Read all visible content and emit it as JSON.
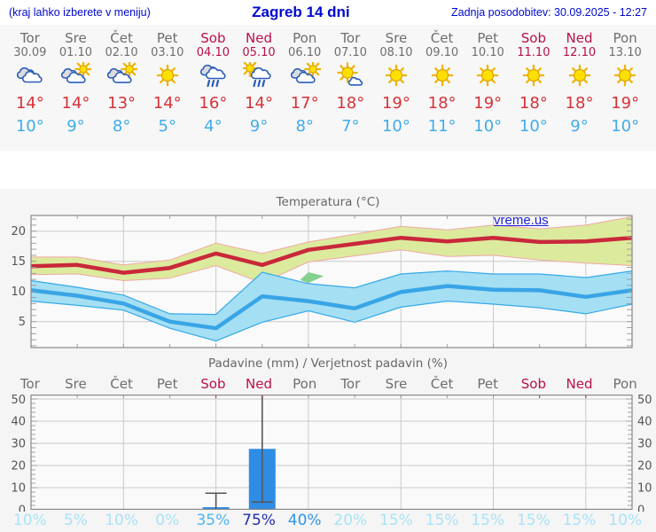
{
  "header": {
    "note": "(kraj lahko izberete v meniju)",
    "title": "Zagreb 14 dni",
    "updated": "Zadnja posodobitev: 30.09.2025 - 12:27"
  },
  "watermark": "vreme.us",
  "colors": {
    "header_blue": "#0008cf",
    "weekday": "#6e6e6e",
    "weekend": "#b8104d",
    "temp_high": "#d63238",
    "temp_low": "#41ace9",
    "max_line": "#c9283a",
    "max_band": "#dcea9e",
    "max_band_edge": "#f0a8a4",
    "min_line": "#38a5e6",
    "min_band": "#a5dff3",
    "min_band_edge": "#35a9e8",
    "overlap": "#84d08f",
    "bar": "#2e8ce4",
    "whisker": "#555555",
    "grid": "#c9c9c9",
    "border": "#888888",
    "tick": "#999999",
    "axis_text": "#555555",
    "prob_low": "#a9e2f7",
    "prob_mid": "#4fb5f1",
    "prob_mid2": "#2e93ee",
    "prob_high": "#202fb0"
  },
  "forecast": {
    "days": [
      {
        "name": "Tor",
        "date": "30.09",
        "weekend": false,
        "icon": "cloudy",
        "high": "14°",
        "low": "10°"
      },
      {
        "name": "Sre",
        "date": "01.10",
        "weekend": false,
        "icon": "partly",
        "high": "14°",
        "low": "9°"
      },
      {
        "name": "Čet",
        "date": "02.10",
        "weekend": false,
        "icon": "partly",
        "high": "13°",
        "low": "8°"
      },
      {
        "name": "Pet",
        "date": "03.10",
        "weekend": false,
        "icon": "sunny",
        "high": "14°",
        "low": "5°"
      },
      {
        "name": "Sob",
        "date": "04.10",
        "weekend": true,
        "icon": "rain",
        "high": "16°",
        "low": "4°"
      },
      {
        "name": "Ned",
        "date": "05.10",
        "weekend": true,
        "icon": "sun-rain",
        "high": "14°",
        "low": "9°"
      },
      {
        "name": "Pon",
        "date": "06.10",
        "weekend": false,
        "icon": "partly",
        "high": "17°",
        "low": "8°"
      },
      {
        "name": "Tor",
        "date": "07.10",
        "weekend": false,
        "icon": "mostly-sunny",
        "high": "18°",
        "low": "7°"
      },
      {
        "name": "Sre",
        "date": "08.10",
        "weekend": false,
        "icon": "sunny",
        "high": "19°",
        "low": "10°"
      },
      {
        "name": "Čet",
        "date": "09.10",
        "weekend": false,
        "icon": "sunny",
        "high": "18°",
        "low": "11°"
      },
      {
        "name": "Pet",
        "date": "10.10",
        "weekend": false,
        "icon": "sunny",
        "high": "19°",
        "low": "10°"
      },
      {
        "name": "Sob",
        "date": "11.10",
        "weekend": true,
        "icon": "sunny",
        "high": "18°",
        "low": "10°"
      },
      {
        "name": "Ned",
        "date": "12.10",
        "weekend": true,
        "icon": "sunny",
        "high": "18°",
        "low": "9°"
      },
      {
        "name": "Pon",
        "date": "13.10",
        "weekend": false,
        "icon": "sunny",
        "high": "19°",
        "low": "10°"
      }
    ]
  },
  "chart_data": [
    {
      "type": "line",
      "title": "Temperatura (°C)",
      "x_categories": [
        "Tor",
        "Sre",
        "Čet",
        "Pet",
        "Sob",
        "Ned",
        "Pon",
        "Tor",
        "Sre",
        "Čet",
        "Pet",
        "Sob",
        "Ned",
        "Pon"
      ],
      "ylim": [
        0.7,
        22.6
      ],
      "yticks": [
        5,
        10,
        15,
        20
      ],
      "grid": true,
      "series": [
        {
          "name": "max_temp",
          "values": [
            14.2,
            14.4,
            13.1,
            13.9,
            16.3,
            14.4,
            16.9,
            17.9,
            18.9,
            18.3,
            18.9,
            18.2,
            18.3,
            18.9
          ]
        },
        {
          "name": "max_band_upper",
          "values": [
            15.7,
            15.7,
            14.4,
            15.2,
            18.0,
            16.3,
            18.2,
            19.5,
            20.8,
            20.2,
            21.0,
            20.4,
            21.0,
            22.4
          ]
        },
        {
          "name": "max_band_lower",
          "values": [
            12.8,
            12.9,
            11.8,
            12.2,
            14.3,
            11.4,
            14.9,
            15.9,
            16.9,
            15.8,
            16.0,
            15.2,
            14.7,
            14.3
          ]
        },
        {
          "name": "min_temp",
          "values": [
            10.2,
            9.3,
            8.0,
            5.0,
            3.9,
            9.2,
            8.4,
            7.2,
            9.9,
            10.9,
            10.3,
            10.2,
            9.1,
            10.2
          ]
        },
        {
          "name": "min_band_upper",
          "values": [
            11.8,
            10.7,
            9.4,
            6.3,
            6.2,
            13.2,
            11.3,
            10.6,
            12.9,
            13.4,
            12.9,
            12.9,
            12.3,
            13.4
          ]
        },
        {
          "name": "min_band_lower",
          "values": [
            8.4,
            7.7,
            6.9,
            3.9,
            1.8,
            4.9,
            6.8,
            4.9,
            7.4,
            8.4,
            7.9,
            7.3,
            6.3,
            7.9
          ]
        }
      ],
      "overlap_polygon": [
        [
          5.82,
          11.9
        ],
        [
          6.0,
          13.2
        ],
        [
          6.33,
          12.57
        ],
        [
          6.0,
          11.4
        ]
      ]
    },
    {
      "type": "bar",
      "title": "Padavine (mm) / Verjetnost padavin (%)",
      "categories": [
        "Tor",
        "Sre",
        "Čet",
        "Pet",
        "Sob",
        "Ned",
        "Pon",
        "Tor",
        "Sre",
        "Čet",
        "Pet",
        "Sob",
        "Ned",
        "Pon"
      ],
      "ylim": [
        0,
        52
      ],
      "yticks": [
        0,
        10,
        20,
        30,
        40,
        50
      ],
      "grid": true,
      "precip_mm": [
        0,
        0,
        0,
        0,
        1.2,
        27.5,
        0,
        0,
        0,
        0,
        0,
        0,
        0,
        0
      ],
      "whiskers_mm": [
        null,
        null,
        null,
        null,
        [
          0,
          7.5
        ],
        [
          3.5,
          52
        ],
        null,
        null,
        null,
        null,
        null,
        null,
        null,
        null
      ],
      "probabilities_pct": [
        10,
        5,
        10,
        0,
        35,
        75,
        40,
        20,
        15,
        15,
        15,
        15,
        15,
        10
      ],
      "prob_labels": [
        "10%",
        "5%",
        "10%",
        "0%",
        "35%",
        "75%",
        "40%",
        "20%",
        "15%",
        "15%",
        "15%",
        "15%",
        "15%",
        "10%"
      ]
    }
  ]
}
